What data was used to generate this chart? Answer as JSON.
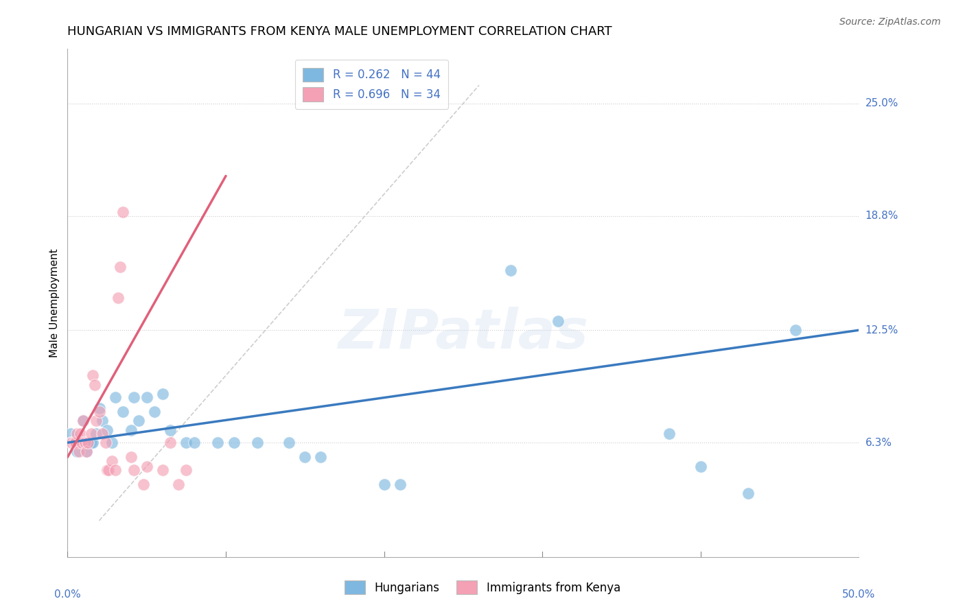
{
  "title": "HUNGARIAN VS IMMIGRANTS FROM KENYA MALE UNEMPLOYMENT CORRELATION CHART",
  "source": "Source: ZipAtlas.com",
  "ylabel": "Male Unemployment",
  "xmin": 0.0,
  "xmax": 0.5,
  "ymin": 0.0,
  "ymax": 0.28,
  "yticks": [
    0.063,
    0.125,
    0.188,
    0.25
  ],
  "ytick_labels": [
    "6.3%",
    "12.5%",
    "18.8%",
    "25.0%"
  ],
  "xtick_labels": [
    "0.0%",
    "50.0%"
  ],
  "legend_items": [
    {
      "label": "R = 0.262   N = 44",
      "color": "#aec6e8"
    },
    {
      "label": "R = 0.696   N = 34",
      "color": "#f4b8c1"
    }
  ],
  "blue_color": "#7eb8e0",
  "pink_color": "#f4a0b5",
  "blue_line_color": "#3a7abf",
  "pink_line_color": "#e0607a",
  "diag_line_color": "#c8c8c8",
  "watermark": "ZIPatlas",
  "hungarian_points": [
    [
      0.002,
      0.068
    ],
    [
      0.003,
      0.063
    ],
    [
      0.004,
      0.063
    ],
    [
      0.005,
      0.063
    ],
    [
      0.006,
      0.058
    ],
    [
      0.007,
      0.063
    ],
    [
      0.008,
      0.063
    ],
    [
      0.009,
      0.063
    ],
    [
      0.01,
      0.075
    ],
    [
      0.011,
      0.063
    ],
    [
      0.012,
      0.058
    ],
    [
      0.013,
      0.063
    ],
    [
      0.015,
      0.063
    ],
    [
      0.016,
      0.063
    ],
    [
      0.018,
      0.068
    ],
    [
      0.02,
      0.082
    ],
    [
      0.022,
      0.075
    ],
    [
      0.025,
      0.07
    ],
    [
      0.028,
      0.063
    ],
    [
      0.03,
      0.088
    ],
    [
      0.035,
      0.08
    ],
    [
      0.04,
      0.07
    ],
    [
      0.042,
      0.088
    ],
    [
      0.045,
      0.075
    ],
    [
      0.05,
      0.088
    ],
    [
      0.055,
      0.08
    ],
    [
      0.06,
      0.09
    ],
    [
      0.065,
      0.07
    ],
    [
      0.075,
      0.063
    ],
    [
      0.08,
      0.063
    ],
    [
      0.095,
      0.063
    ],
    [
      0.105,
      0.063
    ],
    [
      0.12,
      0.063
    ],
    [
      0.14,
      0.063
    ],
    [
      0.15,
      0.055
    ],
    [
      0.16,
      0.055
    ],
    [
      0.2,
      0.04
    ],
    [
      0.21,
      0.04
    ],
    [
      0.28,
      0.158
    ],
    [
      0.31,
      0.13
    ],
    [
      0.38,
      0.068
    ],
    [
      0.4,
      0.05
    ],
    [
      0.43,
      0.035
    ],
    [
      0.46,
      0.125
    ]
  ],
  "kenya_points": [
    [
      0.002,
      0.063
    ],
    [
      0.003,
      0.063
    ],
    [
      0.004,
      0.063
    ],
    [
      0.005,
      0.063
    ],
    [
      0.006,
      0.068
    ],
    [
      0.007,
      0.058
    ],
    [
      0.008,
      0.068
    ],
    [
      0.009,
      0.063
    ],
    [
      0.01,
      0.075
    ],
    [
      0.011,
      0.063
    ],
    [
      0.012,
      0.058
    ],
    [
      0.013,
      0.063
    ],
    [
      0.015,
      0.068
    ],
    [
      0.016,
      0.1
    ],
    [
      0.017,
      0.095
    ],
    [
      0.018,
      0.075
    ],
    [
      0.02,
      0.08
    ],
    [
      0.022,
      0.068
    ],
    [
      0.024,
      0.063
    ],
    [
      0.025,
      0.048
    ],
    [
      0.026,
      0.048
    ],
    [
      0.028,
      0.053
    ],
    [
      0.03,
      0.048
    ],
    [
      0.032,
      0.143
    ],
    [
      0.033,
      0.16
    ],
    [
      0.035,
      0.19
    ],
    [
      0.04,
      0.055
    ],
    [
      0.042,
      0.048
    ],
    [
      0.048,
      0.04
    ],
    [
      0.05,
      0.05
    ],
    [
      0.06,
      0.048
    ],
    [
      0.065,
      0.063
    ],
    [
      0.07,
      0.04
    ],
    [
      0.075,
      0.048
    ]
  ],
  "blue_line": [
    [
      0.0,
      0.063
    ],
    [
      0.5,
      0.125
    ]
  ],
  "pink_line": [
    [
      0.0,
      0.055
    ],
    [
      0.1,
      0.21
    ]
  ],
  "title_fontsize": 13,
  "axis_fontsize": 11,
  "legend_fontsize": 12,
  "source_fontsize": 10,
  "tick_color": "#4472c4",
  "tick_fontsize": 11
}
